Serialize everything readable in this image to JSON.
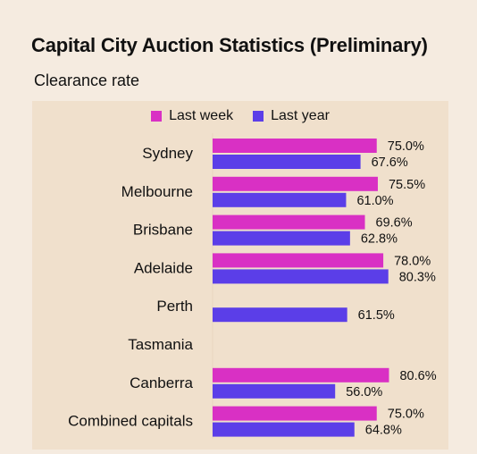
{
  "title": "Capital City Auction Statistics (Preliminary)",
  "subtitle": "Clearance rate",
  "colors": {
    "last_week": "#d930c4",
    "last_year": "#5b3ee8",
    "background": "#f5ebe0",
    "panel": "#f0e0cc"
  },
  "chart_data": {
    "type": "bar",
    "orientation": "horizontal",
    "categories": [
      "Sydney",
      "Melbourne",
      "Brisbane",
      "Adelaide",
      "Perth",
      "Tasmania",
      "Canberra",
      "Combined capitals"
    ],
    "series": [
      {
        "name": "Last week",
        "values": [
          75.0,
          75.5,
          69.6,
          78.0,
          null,
          null,
          80.6,
          75.0
        ]
      },
      {
        "name": "Last year",
        "values": [
          67.6,
          61.0,
          62.8,
          80.3,
          61.5,
          null,
          56.0,
          64.8
        ]
      }
    ],
    "value_labels": [
      [
        "75.0%",
        "75.5%",
        "69.6%",
        "78.0%",
        null,
        null,
        "80.6%",
        "75.0%"
      ],
      [
        "67.6%",
        "61.0%",
        "62.8%",
        "80.3%",
        "61.5%",
        null,
        "56.0%",
        "64.8%"
      ]
    ],
    "legend": "top-center",
    "grid": false
  }
}
